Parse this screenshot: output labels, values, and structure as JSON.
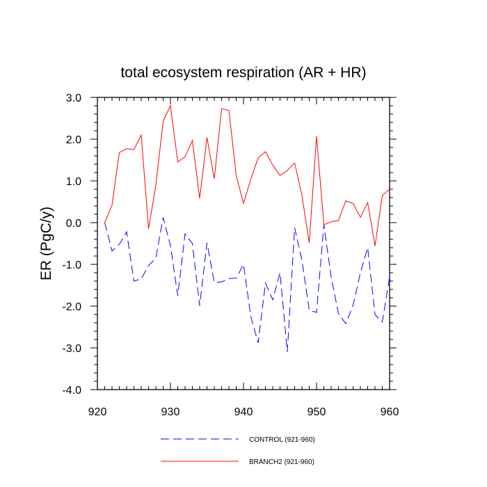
{
  "chart_data": {
    "type": "line",
    "title": "total ecosystem respiration (AR + HR)",
    "xlabel": "",
    "ylabel": "ER  (PgC/y)",
    "xlim": [
      920,
      960
    ],
    "ylim": [
      -4.0,
      3.0
    ],
    "xticks": [
      920,
      930,
      940,
      950,
      960
    ],
    "xtick_labels": [
      "920",
      "930",
      "940",
      "950",
      "960"
    ],
    "yticks": [
      3.0,
      2.0,
      1.0,
      0.0,
      -1.0,
      -2.0,
      -3.0,
      -4.0
    ],
    "ytick_labels": [
      "3.0",
      "2.0",
      "1.0",
      "0.0",
      "-1.0",
      "-2.0",
      "-3.0",
      "-4.0"
    ],
    "grid": false,
    "legend_position": "bottom-center",
    "series": [
      {
        "name": "CONTROL (921-960)",
        "color": "#0000ff",
        "style": "dashed",
        "x": [
          921,
          922,
          923,
          924,
          925,
          926,
          927,
          928,
          929,
          930,
          931,
          932,
          933,
          934,
          935,
          936,
          937,
          938,
          939,
          940,
          941,
          942,
          943,
          944,
          945,
          946,
          947,
          948,
          949,
          950,
          951,
          952,
          953,
          954,
          955,
          956,
          957,
          958,
          959,
          960
        ],
        "values": [
          0.0,
          -0.68,
          -0.52,
          -0.22,
          -1.4,
          -1.35,
          -1.03,
          -0.85,
          0.12,
          -0.55,
          -1.75,
          -0.27,
          -0.5,
          -1.99,
          -0.48,
          -1.43,
          -1.42,
          -1.34,
          -1.33,
          -1.0,
          -2.25,
          -2.88,
          -1.45,
          -1.85,
          -1.2,
          -3.1,
          -0.12,
          -0.9,
          -2.1,
          -2.15,
          -0.05,
          -1.3,
          -2.18,
          -2.42,
          -1.98,
          -1.2,
          -0.6,
          -2.2,
          -2.38,
          -1.3
        ]
      },
      {
        "name": "BRANCH2 (921-960)",
        "color": "#ff0000",
        "style": "solid",
        "x": [
          921,
          922,
          923,
          924,
          925,
          926,
          927,
          928,
          929,
          930,
          931,
          932,
          933,
          934,
          935,
          936,
          937,
          938,
          939,
          940,
          941,
          942,
          943,
          944,
          945,
          946,
          947,
          948,
          949,
          950,
          951,
          952,
          953,
          954,
          955,
          956,
          957,
          958,
          959,
          960
        ],
        "values": [
          0.0,
          0.42,
          1.68,
          1.77,
          1.75,
          2.1,
          -0.15,
          0.89,
          2.43,
          2.8,
          1.45,
          1.58,
          1.97,
          0.58,
          2.04,
          1.05,
          2.73,
          2.69,
          1.13,
          0.46,
          1.04,
          1.55,
          1.7,
          1.38,
          1.13,
          1.25,
          1.43,
          0.65,
          -0.48,
          2.07,
          -0.05,
          0.02,
          0.05,
          0.52,
          0.46,
          0.13,
          0.48,
          -0.56,
          0.65,
          0.8
        ]
      }
    ]
  }
}
